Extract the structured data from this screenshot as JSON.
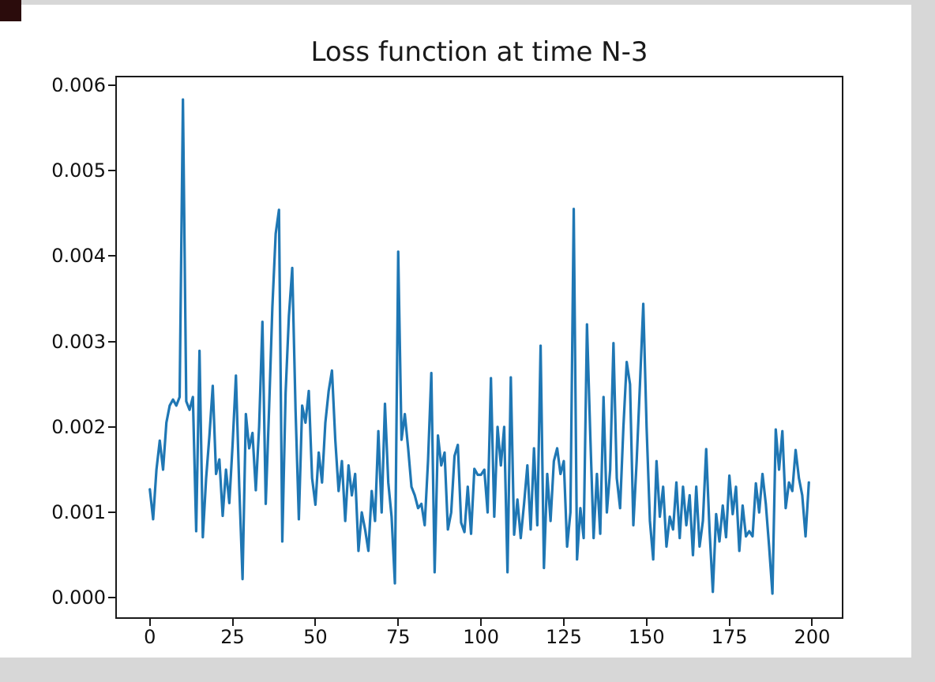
{
  "figure": {
    "title": "Loss function at time N-3"
  },
  "chart_data": {
    "type": "line",
    "title": "Loss function at time N-3",
    "xlabel": "",
    "ylabel": "",
    "legend": null,
    "grid": false,
    "line_color": "#1f77b4",
    "x_ticks": [
      0,
      25,
      50,
      75,
      100,
      125,
      150,
      175,
      200
    ],
    "y_ticks": [
      0.0,
      0.001,
      0.002,
      0.003,
      0.004,
      0.005,
      0.006
    ],
    "y_tick_labels": [
      "0.000",
      "0.001",
      "0.002",
      "0.003",
      "0.004",
      "0.005",
      "0.006"
    ],
    "xlim": [
      -9.95,
      208.95
    ],
    "ylim": [
      -0.000227,
      0.00609
    ],
    "x_description": "sample index 0..199 (one value per index)",
    "values": [
      0.00127,
      0.00092,
      0.0015,
      0.00184,
      0.0015,
      0.00205,
      0.00225,
      0.00232,
      0.00225,
      0.00235,
      0.00583,
      0.0023,
      0.0022,
      0.00235,
      0.00078,
      0.00289,
      0.00071,
      0.0014,
      0.0019,
      0.00248,
      0.00145,
      0.00162,
      0.00096,
      0.0015,
      0.00111,
      0.0018,
      0.0026,
      0.0013,
      0.00022,
      0.00215,
      0.00175,
      0.00193,
      0.00126,
      0.002,
      0.00323,
      0.0011,
      0.0022,
      0.0034,
      0.00426,
      0.00454,
      0.00066,
      0.0024,
      0.0033,
      0.00386,
      0.0022,
      0.00092,
      0.00225,
      0.00205,
      0.00242,
      0.0014,
      0.00109,
      0.0017,
      0.00135,
      0.00205,
      0.00242,
      0.00266,
      0.00185,
      0.00125,
      0.0016,
      0.0009,
      0.00155,
      0.0012,
      0.00145,
      0.00055,
      0.001,
      0.0008,
      0.00055,
      0.00125,
      0.0009,
      0.00195,
      0.001,
      0.00227,
      0.00135,
      0.00095,
      0.00017,
      0.00405,
      0.00185,
      0.00215,
      0.00175,
      0.0013,
      0.0012,
      0.00105,
      0.0011,
      0.00085,
      0.0016,
      0.00263,
      0.0003,
      0.0019,
      0.00155,
      0.0017,
      0.0008,
      0.001,
      0.00166,
      0.00179,
      0.00088,
      0.00077,
      0.0013,
      0.00075,
      0.00151,
      0.00144,
      0.00144,
      0.0015,
      0.001,
      0.00257,
      0.00095,
      0.002,
      0.00155,
      0.002,
      0.0003,
      0.00258,
      0.00074,
      0.00115,
      0.0007,
      0.0011,
      0.00155,
      0.0008,
      0.00175,
      0.00085,
      0.00295,
      0.00035,
      0.00145,
      0.0009,
      0.0016,
      0.00175,
      0.00145,
      0.0016,
      0.0006,
      0.001,
      0.00455,
      0.00045,
      0.00105,
      0.0007,
      0.0032,
      0.0019,
      0.0007,
      0.00145,
      0.00075,
      0.00235,
      0.001,
      0.0015,
      0.00298,
      0.0014,
      0.00105,
      0.002,
      0.00276,
      0.0025,
      0.00085,
      0.0016,
      0.0025,
      0.00344,
      0.002,
      0.0009,
      0.00045,
      0.0016,
      0.00095,
      0.0013,
      0.0006,
      0.00095,
      0.0008,
      0.00135,
      0.0007,
      0.0013,
      0.00085,
      0.0012,
      0.0005,
      0.0013,
      0.0006,
      0.0009,
      0.00174,
      0.0008,
      7e-05,
      0.00098,
      0.00066,
      0.00108,
      0.00071,
      0.00143,
      0.00098,
      0.0013,
      0.00055,
      0.00108,
      0.00072,
      0.00078,
      0.00072,
      0.00134,
      0.001,
      0.00145,
      0.0011,
      0.0006,
      5e-05,
      0.00197,
      0.0015,
      0.00195,
      0.00105,
      0.00135,
      0.00125,
      0.00173,
      0.0014,
      0.0012,
      0.00072,
      0.00135
    ]
  },
  "colors": {
    "background": "#ffffff",
    "spine": "#1a1a1a",
    "tick_text": "#111111",
    "edge_strip": "#d7d7d7",
    "corner_artifact": "#2b0c0c"
  }
}
